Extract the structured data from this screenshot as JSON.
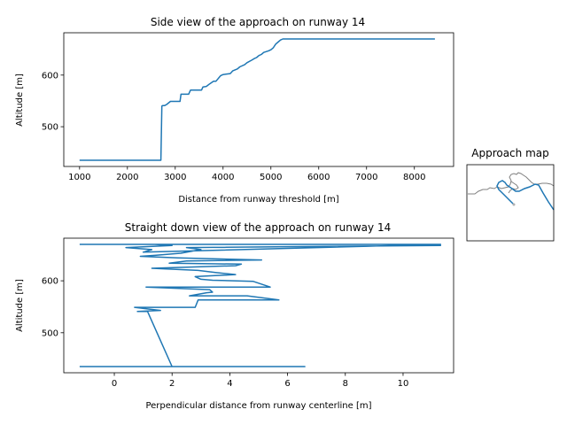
{
  "colors": {
    "series": "#1f77b4",
    "map_line": "#808080",
    "map_points": "#b0b0b0"
  },
  "chart_data": [
    {
      "id": "side",
      "type": "line",
      "title": "Side view of the approach on runway 14",
      "xlabel": "Distance from runway threshold [m]",
      "ylabel": "Altitude [m]",
      "xlim": [
        670,
        8820
      ],
      "ylim": [
        423,
        682
      ],
      "xticks": [
        1000,
        2000,
        3000,
        4000,
        5000,
        6000,
        7000,
        8000
      ],
      "yticks": [
        500,
        600
      ],
      "grid": false,
      "series": [
        {
          "x": [
            1000,
            2700,
            2720,
            2740,
            2780,
            2820,
            2900,
            3100,
            3120,
            3280,
            3320,
            3550,
            3580,
            3650,
            3720,
            3800,
            3850,
            3950,
            4000,
            4150,
            4200,
            4300,
            4350,
            4450,
            4500,
            4600,
            4650,
            4700,
            4750,
            4800,
            4850,
            4950,
            5000,
            5050,
            5100,
            5150,
            5200,
            5250,
            8430
          ],
          "y": [
            435,
            435,
            540,
            541,
            541,
            543,
            549,
            549,
            563,
            563,
            571,
            571,
            577,
            578,
            583,
            588,
            588,
            599,
            601,
            603,
            608,
            612,
            616,
            620,
            624,
            629,
            632,
            634,
            638,
            640,
            644,
            647,
            649,
            653,
            660,
            664,
            668,
            670,
            670
          ]
        }
      ]
    },
    {
      "id": "down",
      "type": "line",
      "title": "Straight down view of the approach on runway 14",
      "xlabel": "Perpendicular distance from runway centerline [m]",
      "ylabel": "Altitude [m]",
      "xlim": [
        -1.75,
        11.75
      ],
      "ylim": [
        423,
        682
      ],
      "xticks": [
        0,
        2,
        4,
        6,
        8,
        10
      ],
      "yticks": [
        500,
        600
      ],
      "grid": false,
      "series": [
        {
          "x": [
            -1.2,
            6.6,
            2.0,
            1.15,
            0.8,
            1.6,
            0.7,
            2.8,
            2.9,
            5.7,
            4.6,
            2.6,
            3.2,
            3.4,
            3.3,
            1.1,
            5.4,
            4.8,
            3.4,
            3.0,
            2.8,
            4.2,
            3.5,
            2.9,
            1.3,
            4.2,
            4.4,
            1.9,
            2.5,
            5.1,
            2.2,
            0.9,
            1.4,
            2.3,
            3.0,
            2.5,
            11.3,
            10.7,
            1.6,
            1.4,
            2.0,
            0.4,
            1.3,
            1.0,
            11.3,
            -1.2
          ],
          "y": [
            435,
            435,
            435,
            541,
            541,
            543,
            549,
            549,
            563,
            563,
            571,
            571,
            577,
            578,
            583,
            588,
            588,
            599,
            601,
            603,
            608,
            612,
            616,
            620,
            624,
            629,
            632,
            634,
            638,
            640,
            644,
            647,
            649,
            653,
            660,
            664,
            668,
            670,
            670,
            670,
            668,
            664,
            660,
            655,
            670,
            670
          ]
        }
      ]
    }
  ],
  "map": {
    "title": "Approach map"
  }
}
